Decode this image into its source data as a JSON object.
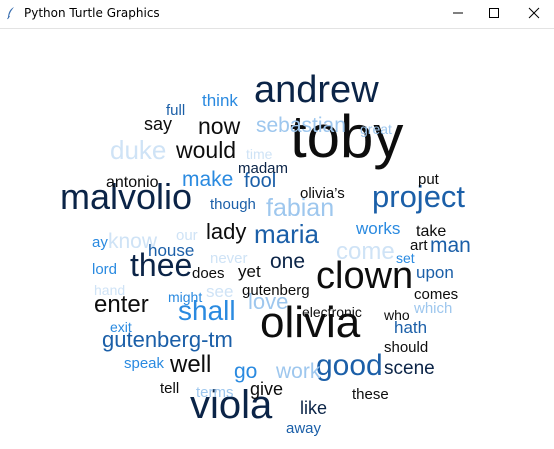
{
  "window": {
    "title": "Python Turtle Graphics",
    "icon": "feather-icon",
    "controls": {
      "minimize_icon": "minimize-icon",
      "maximize_icon": "maximize-icon",
      "close_icon": "close-icon"
    }
  },
  "colors": {
    "navy": "#0b2447",
    "black": "#111111",
    "blue_mid": "#1b5fa8",
    "blue_bright": "#2a8ae0",
    "blue_light": "#9ec7ee",
    "blue_pale": "#cfe3f6"
  },
  "words": [
    {
      "text": "toby"
    },
    {
      "text": "andrew"
    },
    {
      "text": "malvolio"
    },
    {
      "text": "project"
    },
    {
      "text": "clown"
    },
    {
      "text": "olivia"
    },
    {
      "text": "viola"
    },
    {
      "text": "thee"
    },
    {
      "text": "good"
    },
    {
      "text": "maria"
    },
    {
      "text": "fabian"
    },
    {
      "text": "shall"
    },
    {
      "text": "now"
    },
    {
      "text": "would"
    },
    {
      "text": "duke"
    },
    {
      "text": "sebastian"
    },
    {
      "text": "make"
    },
    {
      "text": "fool"
    },
    {
      "text": "lady"
    },
    {
      "text": "enter"
    },
    {
      "text": "gutenberg-tm"
    },
    {
      "text": "well"
    },
    {
      "text": "love"
    },
    {
      "text": "one"
    },
    {
      "text": "come"
    },
    {
      "text": "man"
    },
    {
      "text": "go"
    },
    {
      "text": "work"
    },
    {
      "text": "scene"
    },
    {
      "text": "like"
    },
    {
      "text": "give"
    },
    {
      "text": "say"
    },
    {
      "text": "think"
    },
    {
      "text": "full"
    },
    {
      "text": "great"
    },
    {
      "text": "time"
    },
    {
      "text": "madam"
    },
    {
      "text": "antonio"
    },
    {
      "text": "though"
    },
    {
      "text": "olivia’s"
    },
    {
      "text": "put"
    },
    {
      "text": "works"
    },
    {
      "text": "take"
    },
    {
      "text": "art"
    },
    {
      "text": "our"
    },
    {
      "text": "ay"
    },
    {
      "text": "know"
    },
    {
      "text": "house"
    },
    {
      "text": "never"
    },
    {
      "text": "lord"
    },
    {
      "text": "does"
    },
    {
      "text": "yet"
    },
    {
      "text": "set"
    },
    {
      "text": "upon"
    },
    {
      "text": "hand"
    },
    {
      "text": "might"
    },
    {
      "text": "see"
    },
    {
      "text": "gutenberg"
    },
    {
      "text": "comes"
    },
    {
      "text": "exit"
    },
    {
      "text": "electronic"
    },
    {
      "text": "who"
    },
    {
      "text": "which"
    },
    {
      "text": "hath"
    },
    {
      "text": "should"
    },
    {
      "text": "speak"
    },
    {
      "text": "tell"
    },
    {
      "text": "terms"
    },
    {
      "text": "these"
    },
    {
      "text": "away"
    }
  ]
}
